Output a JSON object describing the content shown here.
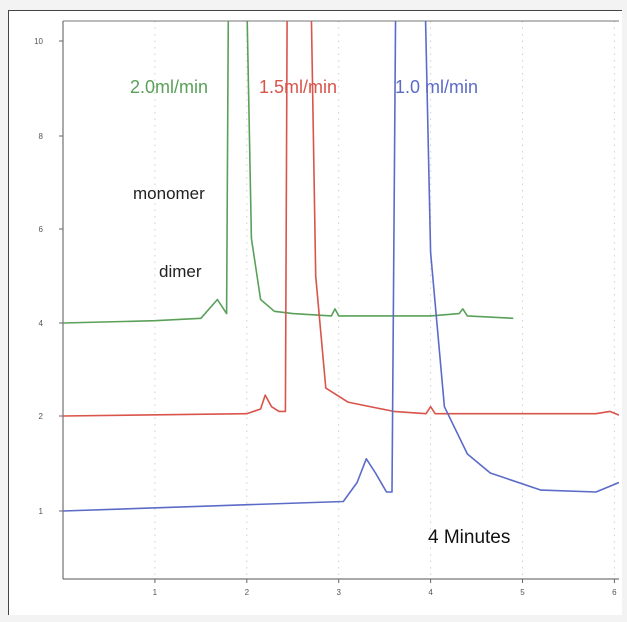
{
  "chart_data": {
    "type": "line",
    "title": "",
    "xlabel": "",
    "ylabel": "",
    "x_ticks": [
      "1",
      "2",
      "3",
      "4",
      "5",
      "6"
    ],
    "y_ticks": [
      "1",
      "2",
      "4",
      "6",
      "8",
      "10"
    ],
    "annotations": {
      "monomer": "monomer",
      "dimer": "dimer",
      "time_note": "4 Minutes"
    },
    "series": [
      {
        "name": "2.0ml/min",
        "color": "#5aa05a",
        "points": [
          [
            0,
            4.0
          ],
          [
            1.0,
            4.05
          ],
          [
            1.5,
            4.1
          ],
          [
            1.68,
            4.5
          ],
          [
            1.78,
            4.2
          ],
          [
            1.8,
            11.0
          ],
          [
            2.0,
            11.0
          ],
          [
            2.05,
            5.8
          ],
          [
            2.15,
            4.5
          ],
          [
            2.3,
            4.25
          ],
          [
            2.5,
            4.2
          ],
          [
            2.92,
            4.15
          ],
          [
            2.96,
            4.3
          ],
          [
            3.0,
            4.15
          ],
          [
            4.0,
            4.15
          ],
          [
            4.31,
            4.2
          ],
          [
            4.35,
            4.3
          ],
          [
            4.4,
            4.15
          ],
          [
            4.9,
            4.1
          ]
        ]
      },
      {
        "name": "1.5ml/min",
        "color": "#d9544a",
        "points": [
          [
            0,
            2.0
          ],
          [
            2.0,
            2.05
          ],
          [
            2.15,
            2.15
          ],
          [
            2.2,
            2.45
          ],
          [
            2.27,
            2.2
          ],
          [
            2.35,
            2.1
          ],
          [
            2.42,
            2.1
          ],
          [
            2.44,
            11.0
          ],
          [
            2.7,
            11.0
          ],
          [
            2.75,
            5.0
          ],
          [
            2.86,
            2.6
          ],
          [
            3.1,
            2.3
          ],
          [
            3.6,
            2.1
          ],
          [
            3.95,
            2.05
          ],
          [
            4.0,
            2.2
          ],
          [
            4.05,
            2.05
          ],
          [
            5.5,
            2.05
          ],
          [
            5.8,
            2.05
          ],
          [
            5.95,
            2.1
          ],
          [
            6.05,
            2.02
          ]
        ]
      },
      {
        "name": "1.0 ml/min",
        "color": "#5b6bc8",
        "points": [
          [
            0,
            1.0
          ],
          [
            1.5,
            1.05
          ],
          [
            3.05,
            1.1
          ],
          [
            3.2,
            1.3
          ],
          [
            3.3,
            1.55
          ],
          [
            3.4,
            1.4
          ],
          [
            3.52,
            1.2
          ],
          [
            3.58,
            1.2
          ],
          [
            3.62,
            11.0
          ],
          [
            3.94,
            11.0
          ],
          [
            4.0,
            5.5
          ],
          [
            4.15,
            2.2
          ],
          [
            4.4,
            1.6
          ],
          [
            4.65,
            1.4
          ],
          [
            5.2,
            1.22
          ],
          [
            5.8,
            1.2
          ],
          [
            6.05,
            1.3
          ]
        ]
      }
    ]
  }
}
